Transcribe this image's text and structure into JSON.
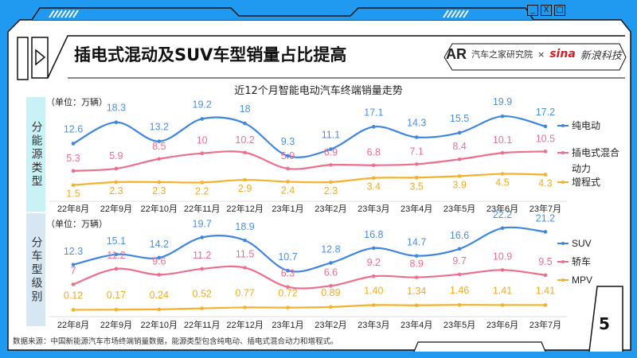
{
  "header": {
    "title": "插电式混动及SUV车型销量占比提高",
    "logo_left": "汽车之家研究院",
    "logo_left_sub": "AUTOHOME RESEARCH INSTITUTE",
    "logo_sep": "×",
    "logo_right_brand": "sina",
    "logo_right": "新浪科技"
  },
  "window_controls": {
    "minimize": "_",
    "close": "X",
    "maximize": "□"
  },
  "page_number": "5",
  "footnote": "数据来源：中国新能源汽车市场终端销量数据，能源类型包含纯电动、插电式混合动力和增程式。",
  "colors": {
    "blue": "#3f86e0",
    "pink": "#ec6f8e",
    "orange": "#f4b12f",
    "label_blue": "#4a8fe6",
    "label_pink": "#ea6f8f",
    "label_orange": "#f2aa22"
  },
  "chart_data": [
    {
      "type": "line",
      "title": "近12个月智能电动汽车终端销量走势",
      "side_label": "分能源类型",
      "unit": "（单位：万辆）",
      "categories": [
        "22年8月",
        "22年9月",
        "22年10月",
        "22年11月",
        "22年12月",
        "23年1月",
        "23年2月",
        "23年3月",
        "23年4月",
        "23年5月",
        "23年6月",
        "23年7月"
      ],
      "series": [
        {
          "name": "纯电动",
          "values": [
            12.6,
            18.3,
            13.2,
            19.2,
            18.0,
            9.3,
            11.1,
            17.1,
            14.3,
            15.5,
            19.9,
            17.2
          ]
        },
        {
          "name": "插电式混合动力",
          "values": [
            5.3,
            5.9,
            8.5,
            10.0,
            10.2,
            5.9,
            6.9,
            6.8,
            7.1,
            8.4,
            10.1,
            10.5
          ]
        },
        {
          "name": "增程式",
          "values": [
            1.5,
            2.3,
            2.3,
            2.2,
            2.9,
            2.4,
            2.3,
            3.4,
            3.5,
            3.9,
            4.5,
            4.3
          ]
        }
      ],
      "legend": "right"
    },
    {
      "type": "line",
      "side_label": "分车型级别",
      "unit": "（单位：万辆）",
      "categories": [
        "22年8月",
        "22年9月",
        "22年10月",
        "22年11月",
        "22年12月",
        "23年1月",
        "23年2月",
        "23年3月",
        "23年4月",
        "23年5月",
        "23年6月",
        "23年7月"
      ],
      "series": [
        {
          "name": "SUV",
          "values": [
            12.3,
            15.1,
            14.2,
            19.7,
            18.9,
            10.7,
            12.8,
            16.8,
            14.7,
            16.6,
            22.2,
            21.2
          ]
        },
        {
          "name": "轿车",
          "values": [
            7.0,
            11.2,
            9.6,
            11.2,
            11.5,
            6.3,
            6.6,
            9.2,
            8.9,
            9.7,
            10.9,
            9.5
          ]
        },
        {
          "name": "MPV",
          "values": [
            "0.12",
            "0.17",
            "0.24",
            "0.52",
            "0.77",
            "0.72",
            "0.89",
            "1.40",
            "1.34",
            "1.46",
            "1.41",
            "1.41"
          ]
        }
      ],
      "legend": "right"
    }
  ]
}
